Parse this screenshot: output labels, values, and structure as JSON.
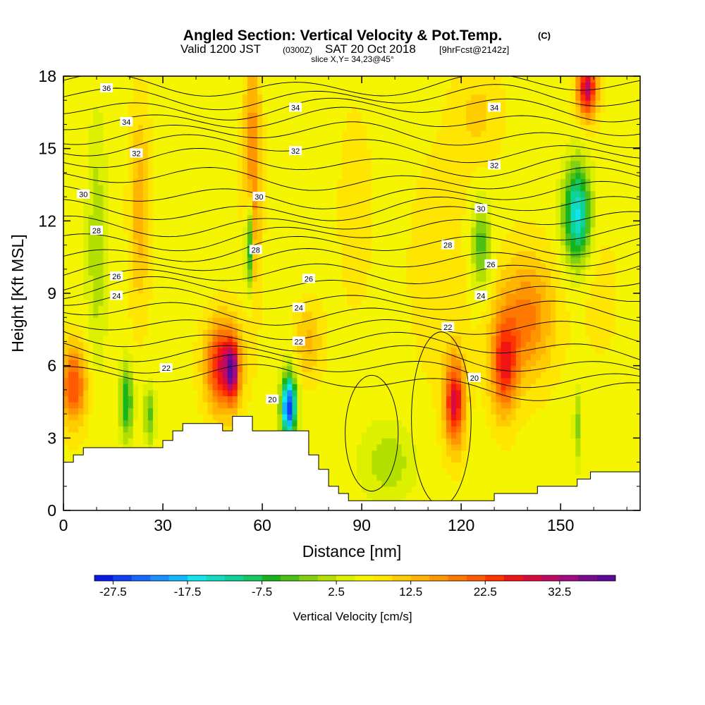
{
  "header": {
    "title": "Angled Section: Vertical Velocity & Pot.Temp.",
    "copyright": "(C)",
    "valid_prefix": "Valid 1200 JST",
    "valid_utc": "(0300Z)",
    "valid_date": "SAT 20 Oct 2018",
    "forecast": "[9hrFcst@2142z]",
    "slice": "slice X,Y= 34,23@45°"
  },
  "colorbar": {
    "label": "Vertical Velocity [cm/s]",
    "colors": [
      "#0a1ae6",
      "#1040f2",
      "#1468fa",
      "#1890ff",
      "#10b8ff",
      "#10e6f0",
      "#10dcc0",
      "#10d296",
      "#14c864",
      "#18b41e",
      "#4cc014",
      "#82d010",
      "#b4e000",
      "#dcf000",
      "#f5f500",
      "#ffe600",
      "#ffcc00",
      "#ffb400",
      "#ff9600",
      "#ff7800",
      "#ff5a00",
      "#ff3200",
      "#f01414",
      "#dc0a3c",
      "#be0a64",
      "#a00a82",
      "#7a0a8c",
      "#5a0a96"
    ],
    "tick_labels": [
      "-27.5",
      "-17.5",
      "-7.5",
      "2.5",
      "12.5",
      "22.5",
      "32.5"
    ]
  },
  "chart_data": {
    "type": "heatmap",
    "title": "Angled Section: Vertical Velocity & Pot.Temp.",
    "xlabel": "Distance [nm]",
    "ylabel": "Height [Kft MSL]",
    "xlim": [
      0,
      174
    ],
    "ylim": [
      0,
      18
    ],
    "x_ticks": [
      0,
      30,
      60,
      90,
      120,
      150
    ],
    "x_tick_labels": [
      "0",
      "30",
      "60",
      "90",
      "120",
      "150"
    ],
    "y_ticks": [
      0,
      3,
      6,
      9,
      12,
      15,
      18
    ],
    "y_tick_labels": [
      "0",
      "3",
      "6",
      "9",
      "12",
      "15",
      "18"
    ],
    "background_w": 4,
    "blobs": [
      {
        "x": 3,
        "y": 5.2,
        "sx": 4,
        "sy": 1.6,
        "w": 16
      },
      {
        "x": 23,
        "y": 12.5,
        "sx": 3,
        "sy": 4,
        "w": 8
      },
      {
        "x": 26,
        "y": 4,
        "sx": 1.6,
        "sy": 1.2,
        "w": -10
      },
      {
        "x": 19,
        "y": 4.5,
        "sx": 2,
        "sy": 1.5,
        "w": -14
      },
      {
        "x": 10,
        "y": 11,
        "sx": 3,
        "sy": 5,
        "w": -6
      },
      {
        "x": 48,
        "y": 6,
        "sx": 5,
        "sy": 1.8,
        "w": 22
      },
      {
        "x": 51,
        "y": 5.8,
        "sx": 1.8,
        "sy": 1.2,
        "w": 18
      },
      {
        "x": 56,
        "y": 11,
        "sx": 1.2,
        "sy": 2,
        "w": -20
      },
      {
        "x": 57,
        "y": 14,
        "sx": 2.5,
        "sy": 5,
        "w": 12
      },
      {
        "x": 68,
        "y": 4.3,
        "sx": 2.2,
        "sy": 1.3,
        "w": -34
      },
      {
        "x": 74,
        "y": 7,
        "sx": 4,
        "sy": 1.5,
        "w": 7
      },
      {
        "x": 88,
        "y": 12.5,
        "sx": 6,
        "sy": 5,
        "w": 2
      },
      {
        "x": 98,
        "y": 2,
        "sx": 8,
        "sy": 1.6,
        "w": -6
      },
      {
        "x": 114,
        "y": 10,
        "sx": 12,
        "sy": 6,
        "w": 2
      },
      {
        "x": 118,
        "y": 4.5,
        "sx": 3,
        "sy": 1.8,
        "w": 22
      },
      {
        "x": 133,
        "y": 6,
        "sx": 4,
        "sy": 2,
        "w": 18
      },
      {
        "x": 126,
        "y": 11,
        "sx": 3,
        "sy": 1.8,
        "w": -11
      },
      {
        "x": 140,
        "y": 8,
        "sx": 8,
        "sy": 2.5,
        "w": 12
      },
      {
        "x": 155,
        "y": 12.3,
        "sx": 4,
        "sy": 2,
        "w": -22
      },
      {
        "x": 155,
        "y": 3.5,
        "sx": 1,
        "sy": 1.5,
        "w": -8
      },
      {
        "x": 158,
        "y": 17.5,
        "sx": 3,
        "sy": 1.2,
        "w": 24
      },
      {
        "x": 125,
        "y": 16.5,
        "sx": 7,
        "sy": 2,
        "w": 4
      },
      {
        "x": 162,
        "y": 9,
        "sx": 6,
        "sy": 3,
        "w": 2
      }
    ],
    "terrain": [
      [
        0,
        2.0
      ],
      [
        3,
        2.0
      ],
      [
        3,
        2.3
      ],
      [
        6,
        2.3
      ],
      [
        6,
        2.6
      ],
      [
        30,
        2.6
      ],
      [
        30,
        2.9
      ],
      [
        33,
        2.9
      ],
      [
        33,
        3.3
      ],
      [
        36,
        3.3
      ],
      [
        36,
        3.6
      ],
      [
        48,
        3.6
      ],
      [
        48,
        3.3
      ],
      [
        51,
        3.3
      ],
      [
        51,
        3.9
      ],
      [
        57,
        3.9
      ],
      [
        57,
        3.3
      ],
      [
        74,
        3.3
      ],
      [
        74,
        2.3
      ],
      [
        77,
        2.3
      ],
      [
        77,
        1.7
      ],
      [
        80,
        1.7
      ],
      [
        80,
        1.0
      ],
      [
        83,
        1.0
      ],
      [
        83,
        0.7
      ],
      [
        86,
        0.7
      ],
      [
        86,
        0.4
      ],
      [
        130,
        0.4
      ],
      [
        130,
        0.7
      ],
      [
        143,
        0.7
      ],
      [
        143,
        1.0
      ],
      [
        155,
        1.0
      ],
      [
        155,
        1.3
      ],
      [
        159,
        1.3
      ],
      [
        159,
        1.6
      ],
      [
        174,
        1.6
      ]
    ],
    "theta_contours": [
      {
        "level": 20,
        "y0": 5.8,
        "slope": -0.005
      },
      {
        "level": 22,
        "y0": 7.2,
        "slope": -0.005
      },
      {
        "level": 24,
        "y0": 8.5,
        "slope": 0.0
      },
      {
        "level": 26,
        "y0": 9.6,
        "slope": 0.004
      },
      {
        "level": 28,
        "y0": 11.2,
        "slope": 0.003
      },
      {
        "level": 30,
        "y0": 12.8,
        "slope": 0.001
      },
      {
        "level": 32,
        "y0": 14.9,
        "slope": -0.002
      },
      {
        "level": 34,
        "y0": 16.4,
        "slope": -0.001
      },
      {
        "level": 36,
        "y0": 17.6,
        "slope": 0.0
      }
    ],
    "theta_lines": 22,
    "contour_labels": [
      {
        "x": 13,
        "y": 17.5,
        "text": "36"
      },
      {
        "x": 19,
        "y": 16.1,
        "text": "34"
      },
      {
        "x": 70,
        "y": 16.7,
        "text": "34"
      },
      {
        "x": 130,
        "y": 16.7,
        "text": "34"
      },
      {
        "x": 22,
        "y": 14.8,
        "text": "32"
      },
      {
        "x": 70,
        "y": 14.9,
        "text": "32"
      },
      {
        "x": 130,
        "y": 14.3,
        "text": "32"
      },
      {
        "x": 6,
        "y": 13.1,
        "text": "30"
      },
      {
        "x": 59,
        "y": 13.0,
        "text": "30"
      },
      {
        "x": 126,
        "y": 12.5,
        "text": "30"
      },
      {
        "x": 10,
        "y": 11.6,
        "text": "28"
      },
      {
        "x": 58,
        "y": 10.8,
        "text": "28"
      },
      {
        "x": 116,
        "y": 11.0,
        "text": "28"
      },
      {
        "x": 16,
        "y": 9.7,
        "text": "26"
      },
      {
        "x": 74,
        "y": 9.6,
        "text": "26"
      },
      {
        "x": 129,
        "y": 10.2,
        "text": "26"
      },
      {
        "x": 16,
        "y": 8.9,
        "text": "24"
      },
      {
        "x": 71,
        "y": 8.4,
        "text": "24"
      },
      {
        "x": 126,
        "y": 8.9,
        "text": "24"
      },
      {
        "x": 71,
        "y": 7.0,
        "text": "22"
      },
      {
        "x": 116,
        "y": 7.6,
        "text": "22"
      },
      {
        "x": 31,
        "y": 5.9,
        "text": "22"
      },
      {
        "x": 63,
        "y": 4.6,
        "text": "20"
      },
      {
        "x": 124,
        "y": 5.5,
        "text": "20"
      }
    ]
  }
}
